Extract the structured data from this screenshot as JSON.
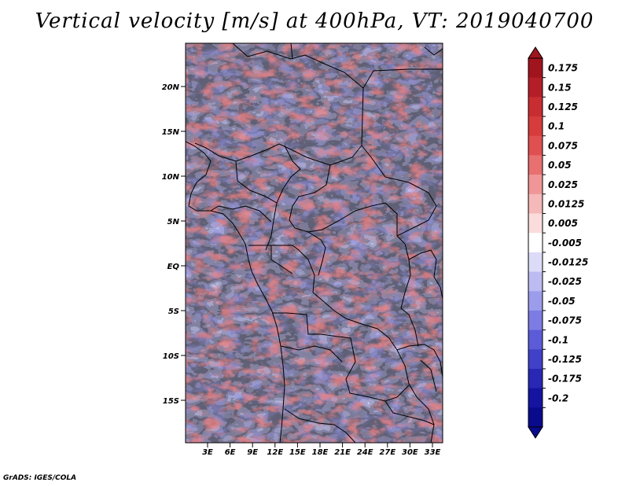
{
  "title": "Vertical velocity [m/s] at 400hPa, VT: 2019040700",
  "footer": "GrADS: IGES/COLA",
  "map": {
    "lat_labels": [
      "20N",
      "15N",
      "10N",
      "5N",
      "EQ",
      "5S",
      "10S",
      "15S"
    ],
    "lon_labels": [
      "3E",
      "6E",
      "9E",
      "12E",
      "15E",
      "18E",
      "21E",
      "24E",
      "27E",
      "30E",
      "33E"
    ]
  },
  "colorbar": {
    "labels": [
      "0.175",
      "0.15",
      "0.125",
      "0.1",
      "0.075",
      "0.05",
      "0.025",
      "0.0125",
      "0.005",
      "-0.005",
      "-0.0125",
      "-0.025",
      "-0.05",
      "-0.075",
      "-0.1",
      "-0.125",
      "-0.175",
      "-0.2"
    ],
    "colors": [
      "#a0141e",
      "#b41e28",
      "#c82d32",
      "#d63c3c",
      "#e05050",
      "#e87070",
      "#f09696",
      "#f5b9b9",
      "#fadcdc",
      "#ffffff",
      "#dcdcf8",
      "#bcbcf2",
      "#9c9cec",
      "#7c7ce4",
      "#5c5cd8",
      "#4040c8",
      "#2828b4",
      "#1414a0",
      "#0a0a8c"
    ]
  }
}
